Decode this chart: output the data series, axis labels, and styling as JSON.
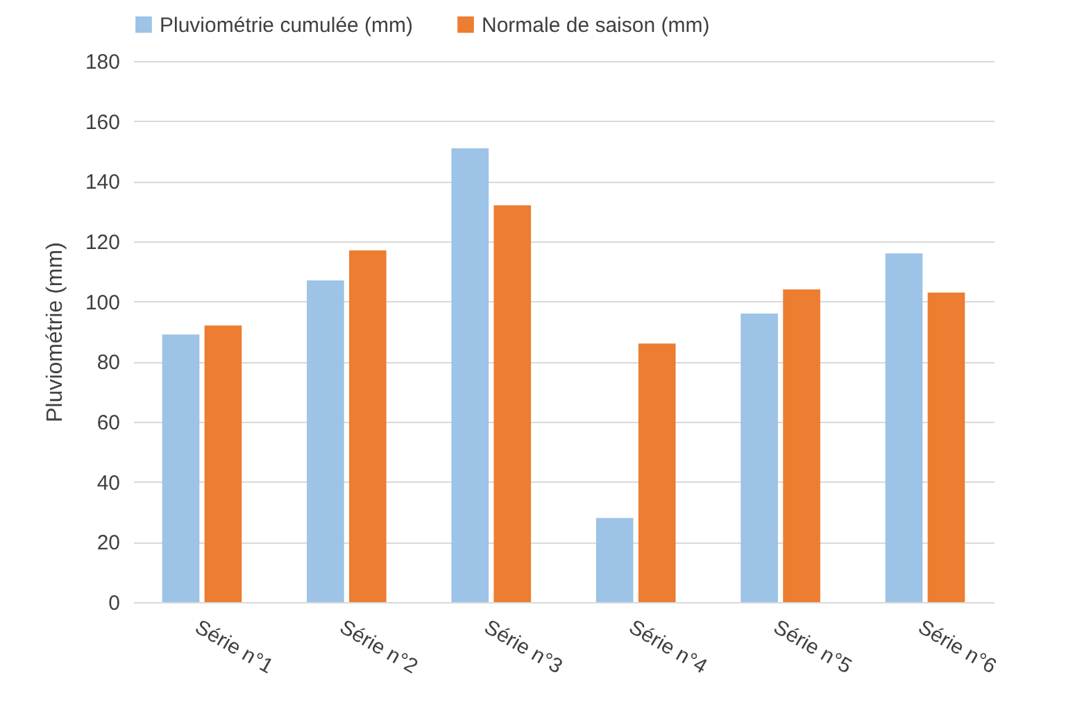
{
  "chart_data": {
    "type": "bar",
    "ylabel": "Pluviométrie (mm)",
    "categories": [
      "Série n°1",
      "Série n°2",
      "Série n°3",
      "Série n°4",
      "Série n°5",
      "Série n°6"
    ],
    "series": [
      {
        "name": "Pluviométrie cumulée (mm)",
        "color": "#9dc3e6",
        "values": [
          89,
          107,
          151,
          28,
          96,
          116
        ]
      },
      {
        "name": "Normale de saison (mm)",
        "color": "#ed7d31",
        "values": [
          92,
          117,
          132,
          86,
          104,
          103
        ]
      }
    ],
    "ylim": [
      0,
      180
    ],
    "yticks": [
      0,
      20,
      40,
      60,
      80,
      100,
      120,
      140,
      160,
      180
    ],
    "grid": "y",
    "legend": "top"
  }
}
